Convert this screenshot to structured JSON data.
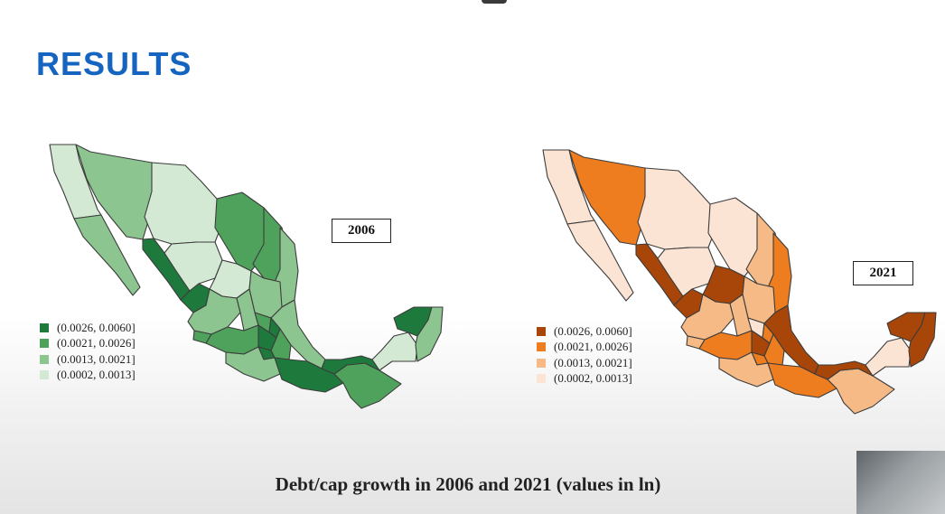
{
  "title": "RESULTS",
  "caption": "Debt/cap growth in 2006 and 2021 (values in ln)",
  "legend_labels": [
    "(0.0026, 0.0060]",
    "(0.0021, 0.0026]",
    "(0.0013, 0.0021]",
    "(0.0002, 0.0013]"
  ],
  "maps": [
    {
      "year": "2006",
      "palette": [
        "#1e7a3c",
        "#4fa25b",
        "#8cc58f",
        "#d3e9d3"
      ]
    },
    {
      "year": "2021",
      "palette": [
        "#a84508",
        "#ee7d1f",
        "#f5ba85",
        "#fce4d4"
      ]
    }
  ]
}
